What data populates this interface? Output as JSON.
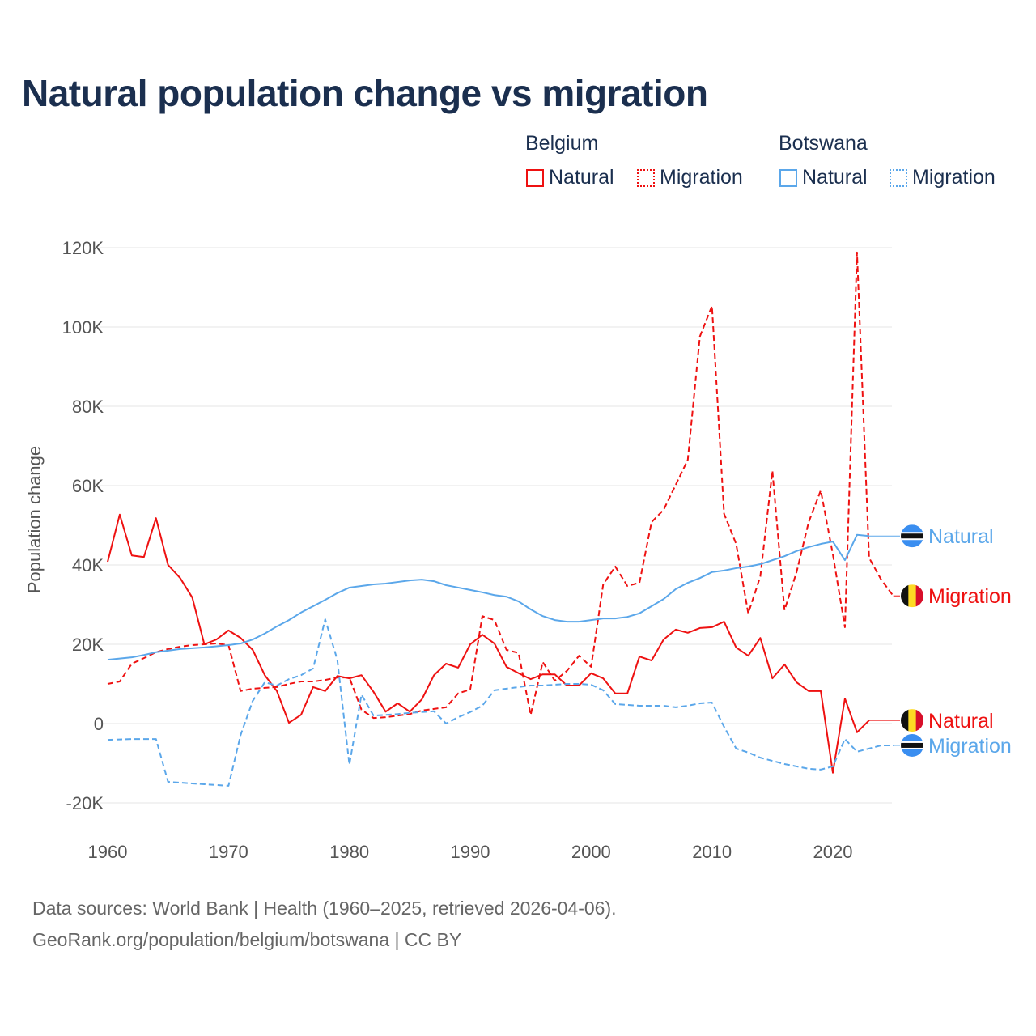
{
  "title": "Natural population change vs migration",
  "legend": {
    "groups": [
      {
        "name": "Belgium",
        "items": [
          "Natural",
          "Migration"
        ],
        "color": "#ee1111"
      },
      {
        "name": "Botswana",
        "items": [
          "Natural",
          "Migration"
        ],
        "color": "#5ba7ea"
      }
    ]
  },
  "source": {
    "line1": "Data sources: World Bank | Health (1960–2025, retrieved 2026-04-06).",
    "line2": "GeoRank.org/population/belgium/botswana | CC BY"
  },
  "chart_data": {
    "type": "line",
    "title": "Natural population change vs migration",
    "xlabel": "",
    "ylabel": "Population change",
    "xlim": [
      1960,
      2025
    ],
    "ylim": [
      -20000,
      120000
    ],
    "x_ticks": [
      1960,
      1970,
      1980,
      1990,
      2000,
      2010,
      2020
    ],
    "x_tick_labels": [
      "1960",
      "1970",
      "1980",
      "1990",
      "2000",
      "2010",
      "2020"
    ],
    "y_ticks": [
      -20000,
      0,
      20000,
      40000,
      60000,
      80000,
      100000,
      120000
    ],
    "y_tick_labels": [
      "-20K",
      "0",
      "20K",
      "40K",
      "60K",
      "80K",
      "100K",
      "120K"
    ],
    "grid": true,
    "legend_position": "top-right",
    "series": [
      {
        "name": "Belgium Natural",
        "end_label": "Natural",
        "color": "#ee1111",
        "dash": false,
        "flag": "belgium",
        "start": 1960,
        "values": [
          40.8,
          52.7,
          42.4,
          42,
          51.8,
          40,
          36.7,
          31.8,
          20,
          21.2,
          23.5,
          21.6,
          18.6,
          12.2,
          8.2,
          0.2,
          2.2,
          9.2,
          8.2,
          12,
          11.4,
          12.2,
          8,
          3,
          5.1,
          3,
          6.1,
          12.2,
          15.1,
          14.1,
          20,
          22.4,
          20.2,
          14.3,
          12.7,
          11.2,
          12.4,
          12.4,
          9.6,
          9.6,
          12.7,
          11.4,
          7.6,
          7.6,
          16.9,
          15.9,
          21.2,
          23.7,
          22.9,
          24.1,
          24.3,
          25.7,
          19.2,
          17.1,
          21.6,
          11.4,
          14.9,
          10.4,
          8.2,
          8.2,
          -12.4,
          6.3,
          -2.2,
          0.8
        ]
      },
      {
        "name": "Belgium Migration",
        "end_label": "Migration",
        "color": "#ee1111",
        "dash": true,
        "flag": "belgium",
        "start": 1960,
        "values": [
          10,
          10.6,
          15.1,
          16.5,
          18,
          18.8,
          19.4,
          19.8,
          20,
          20.2,
          19.8,
          8.2,
          8.8,
          9,
          9.2,
          10,
          10.6,
          10.6,
          11,
          11.6,
          11.6,
          3.5,
          1.4,
          1.6,
          2,
          2.4,
          3.3,
          3.7,
          4.1,
          7.6,
          8.6,
          27.1,
          26.1,
          18.6,
          17.8,
          2.2,
          15.5,
          10.8,
          13.3,
          17.1,
          14.3,
          35.1,
          39.6,
          34.7,
          35.5,
          50.8,
          53.9,
          60.2,
          66.5,
          97.6,
          105.3,
          52.9,
          45.3,
          27.8,
          37.1,
          63.7,
          28.6,
          38.2,
          50.8,
          58.8,
          42.7,
          24.3,
          118.8,
          41.8,
          36.3,
          32.2
        ]
      },
      {
        "name": "Botswana Natural",
        "end_label": "Natural",
        "color": "#5ba7ea",
        "dash": false,
        "flag": "botswana",
        "start": 1960,
        "values": [
          16.1,
          16.4,
          16.7,
          17.3,
          18,
          18.4,
          18.8,
          19,
          19.2,
          19.5,
          19.8,
          20.2,
          21.2,
          22.7,
          24.5,
          26.1,
          28,
          29.6,
          31.2,
          32.9,
          34.3,
          34.7,
          35.1,
          35.3,
          35.7,
          36.1,
          36.3,
          35.9,
          34.9,
          34.3,
          33.7,
          33.1,
          32.4,
          32,
          30.8,
          28.8,
          27.1,
          26.1,
          25.7,
          25.7,
          26.1,
          26.5,
          26.5,
          26.9,
          27.8,
          29.6,
          31.4,
          33.9,
          35.5,
          36.7,
          38.2,
          38.6,
          39.2,
          39.6,
          40.2,
          41.2,
          42.2,
          43.5,
          44.5,
          45.3,
          45.9,
          41.2,
          47.6,
          47.3
        ]
      },
      {
        "name": "Botswana Migration",
        "end_label": "Migration",
        "color": "#5ba7ea",
        "dash": true,
        "flag": "botswana",
        "start": 1960,
        "values": [
          -4.1,
          -4,
          -3.9,
          -3.9,
          -3.9,
          -14.7,
          -14.9,
          -15.1,
          -15.3,
          -15.5,
          -15.7,
          -2.9,
          5.7,
          10.4,
          9.6,
          11.2,
          12.2,
          13.9,
          26.3,
          16.1,
          -10.4,
          7.3,
          2,
          2.2,
          2.4,
          2.7,
          2.9,
          3.1,
          0,
          1.6,
          2.9,
          4.5,
          8.4,
          8.8,
          9.2,
          9.6,
          9.6,
          9.8,
          10,
          10,
          9.8,
          8.4,
          4.9,
          4.7,
          4.5,
          4.5,
          4.5,
          4.1,
          4.5,
          5.1,
          5.3,
          -0.8,
          -6.3,
          -7.3,
          -8.6,
          -9.4,
          -10.2,
          -10.8,
          -11.4,
          -11.6,
          -10.8,
          -3.9,
          -7.1,
          -6.3,
          -5.5,
          -5.5
        ]
      }
    ],
    "value_unit": "thousands"
  }
}
